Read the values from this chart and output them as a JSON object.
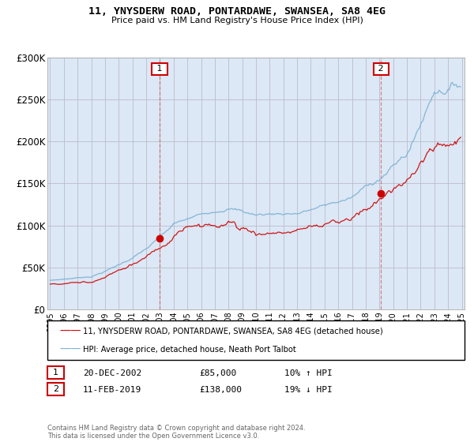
{
  "title": "11, YNYSDERW ROAD, PONTARDAWE, SWANSEA, SA8 4EG",
  "subtitle": "Price paid vs. HM Land Registry's House Price Index (HPI)",
  "ylabel_ticks": [
    "£0",
    "£50K",
    "£100K",
    "£150K",
    "£200K",
    "£250K",
    "£300K"
  ],
  "ytick_values": [
    0,
    50000,
    100000,
    150000,
    200000,
    250000,
    300000
  ],
  "ylim": [
    0,
    300000
  ],
  "xlim_start": 1995.0,
  "xlim_end": 2025.0,
  "transaction1": {
    "date_label": "20-DEC-2002",
    "price": 85000,
    "year": 2002.97,
    "hpi_pct": "10% ↑ HPI",
    "num": "1"
  },
  "transaction2": {
    "date_label": "11-FEB-2019",
    "price": 138000,
    "year": 2019.12,
    "hpi_pct": "19% ↓ HPI",
    "num": "2"
  },
  "legend_line1": "11, YNYSDERW ROAD, PONTARDAWE, SWANSEA, SA8 4EG (detached house)",
  "legend_line2": "HPI: Average price, detached house, Neath Port Talbot",
  "footer": "Contains HM Land Registry data © Crown copyright and database right 2024.\nThis data is licensed under the Open Government Licence v3.0.",
  "red_color": "#cc0000",
  "blue_color": "#7ab0d4",
  "plot_bg_color": "#dce8f5",
  "fig_bg_color": "#ffffff"
}
